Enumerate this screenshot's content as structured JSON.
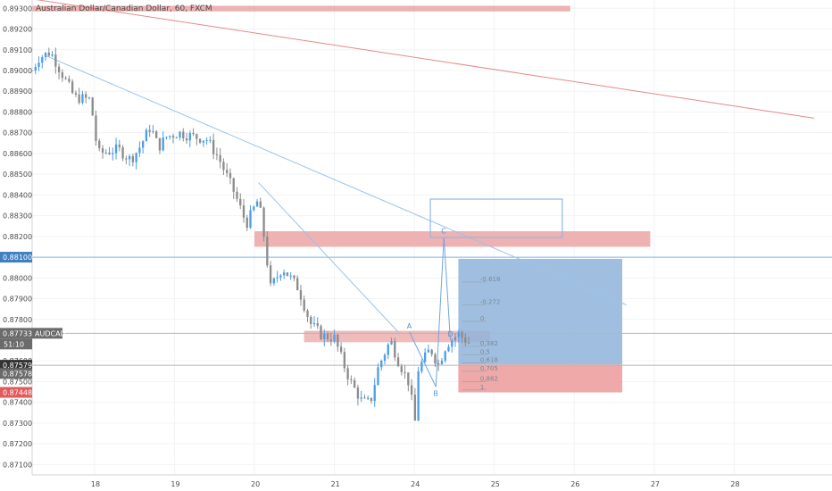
{
  "title": "Australian Dollar/Canadian Dollar, 60, FXCM",
  "symbol_tag": "AUDCAD",
  "countdown": "51:10",
  "colors": {
    "up": "#4c9ee8",
    "down": "#8c8c8c",
    "resistance_zone": "#eba4a4",
    "target_zone": "#8fb4db",
    "stop_zone": "#ec9a9a",
    "trendline": "#9cc2e6",
    "red_line": "#e48a8a",
    "tag_blue": "#3f7fc1",
    "tag_gray": "#6b6b6b",
    "tag_dark": "#333333",
    "tag_red": "#e05b5b"
  },
  "chart_data": {
    "type": "candlestick",
    "title": "Australian Dollar/Canadian Dollar, 60, FXCM",
    "x_ticks": [
      "18",
      "19",
      "20",
      "21",
      "24",
      "25",
      "26",
      "27",
      "28"
    ],
    "x_tick_pos": [
      1,
      2,
      3,
      4,
      5,
      6,
      7,
      8,
      9
    ],
    "xlim": [
      0.22,
      10.0
    ],
    "y_ticks": [
      "0.89300",
      "0.89200",
      "0.89100",
      "0.89000",
      "0.88900",
      "0.88800",
      "0.88700",
      "0.88600",
      "0.88500",
      "0.88400",
      "0.88300",
      "0.88200",
      "0.88000",
      "0.87900",
      "0.87800",
      "0.87600",
      "0.87500",
      "0.87400",
      "0.87300",
      "0.87200",
      "0.87100"
    ],
    "ylim": [
      0.8705,
      0.8934
    ],
    "anchors": [
      [
        0.22,
        0.89
      ],
      [
        0.3,
        0.8906
      ],
      [
        0.45,
        0.8909
      ],
      [
        0.6,
        0.8898
      ],
      [
        0.75,
        0.8887
      ],
      [
        0.95,
        0.8886
      ],
      [
        1.02,
        0.8866
      ],
      [
        1.05,
        0.886
      ],
      [
        1.3,
        0.8862
      ],
      [
        1.45,
        0.8857
      ],
      [
        1.55,
        0.8862
      ],
      [
        1.7,
        0.8873
      ],
      [
        1.8,
        0.8863
      ],
      [
        1.9,
        0.8868
      ],
      [
        2.05,
        0.887
      ],
      [
        2.25,
        0.8868
      ],
      [
        2.4,
        0.8867
      ],
      [
        2.55,
        0.8858
      ],
      [
        2.75,
        0.8841
      ],
      [
        2.9,
        0.8826
      ],
      [
        3.05,
        0.8838
      ],
      [
        3.12,
        0.882
      ],
      [
        3.2,
        0.8795
      ],
      [
        3.35,
        0.8805
      ],
      [
        3.55,
        0.8795
      ],
      [
        3.7,
        0.8778
      ],
      [
        3.85,
        0.8772
      ],
      [
        4.0,
        0.8771
      ],
      [
        4.1,
        0.876
      ],
      [
        4.2,
        0.875
      ],
      [
        4.35,
        0.874
      ],
      [
        4.45,
        0.874
      ],
      [
        4.55,
        0.8757
      ],
      [
        4.7,
        0.877
      ],
      [
        4.8,
        0.876
      ],
      [
        4.95,
        0.8748
      ],
      [
        5.0,
        0.8726
      ],
      [
        5.05,
        0.8756
      ],
      [
        5.2,
        0.8766
      ],
      [
        5.3,
        0.8758
      ],
      [
        5.4,
        0.8768
      ],
      [
        5.55,
        0.8773
      ],
      [
        5.7,
        0.8768
      ]
    ],
    "current_price": 0.87733,
    "horizontal_lines": [
      {
        "price": 0.881,
        "label": "0.88100"
      },
      {
        "price": 0.87733,
        "label": "0.87733"
      },
      {
        "price": 0.87579,
        "label": "0.87579"
      }
    ],
    "price_tags": [
      {
        "price": 0.881,
        "label": "0.88100",
        "style": "blue"
      },
      {
        "price": 0.87733,
        "label": "0.87733",
        "style": "gray"
      },
      {
        "price": 0.87579,
        "label": "0.87579",
        "style": "dark"
      },
      {
        "price": 0.87578,
        "label": "0.87578",
        "style": "gray"
      },
      {
        "price": 0.87448,
        "label": "0.87448",
        "style": "red"
      }
    ],
    "zones": [
      {
        "name": "top-resistance",
        "x1": 0.22,
        "x2": 6.95,
        "y1": 0.89312,
        "y2": 0.89285
      },
      {
        "name": "resistance-zone",
        "x1": 3.0,
        "x2": 7.95,
        "y1": 0.88225,
        "y2": 0.8815
      },
      {
        "name": "small-zone",
        "x1": 3.62,
        "x2": 5.95,
        "y1": 0.87745,
        "y2": 0.8769
      },
      {
        "name": "target-zone",
        "x1": 5.55,
        "x2": 7.6,
        "y1": 0.88092,
        "y2": 0.87583
      },
      {
        "name": "stop-zone",
        "x1": 5.55,
        "x2": 7.6,
        "y1": 0.87583,
        "y2": 0.87448
      }
    ],
    "trendlines": [
      {
        "name": "descending-trendline",
        "x1": 0.4,
        "y1": 0.8907,
        "x2": 7.65,
        "y2": 0.8787
      },
      {
        "name": "red-descending-line",
        "x1": 0.22,
        "y1": 0.89345,
        "x2": 10.0,
        "y2": 0.8877
      },
      {
        "name": "drop-line",
        "x1": 3.05,
        "y1": 0.8846,
        "x2": 4.82,
        "y2": 0.8773
      }
    ],
    "abcd_pattern": [
      {
        "label": "A",
        "x": 4.94,
        "y": 0.87738
      },
      {
        "label": "B",
        "x": 5.27,
        "y": 0.87475
      },
      {
        "label": "C",
        "x": 5.37,
        "y": 0.88197
      },
      {
        "label": "D",
        "x": 5.45,
        "y": 0.877
      }
    ],
    "target_box": {
      "x1": 5.2,
      "x2": 6.85,
      "y1": 0.8838,
      "y2": 0.88195
    },
    "fib_levels": [
      {
        "label": "-0.618",
        "price": 0.8798
      },
      {
        "label": "-0.272",
        "price": 0.8787
      },
      {
        "label": "0",
        "price": 0.8779
      },
      {
        "label": "0.382",
        "price": 0.8767
      },
      {
        "label": "0.5",
        "price": 0.8763
      },
      {
        "label": "0.618",
        "price": 0.8759
      },
      {
        "label": "0.705",
        "price": 0.8755
      },
      {
        "label": "0.882",
        "price": 0.875
      },
      {
        "label": "1",
        "price": 0.8746
      }
    ],
    "fib_x": [
      5.6,
      5.9
    ]
  }
}
